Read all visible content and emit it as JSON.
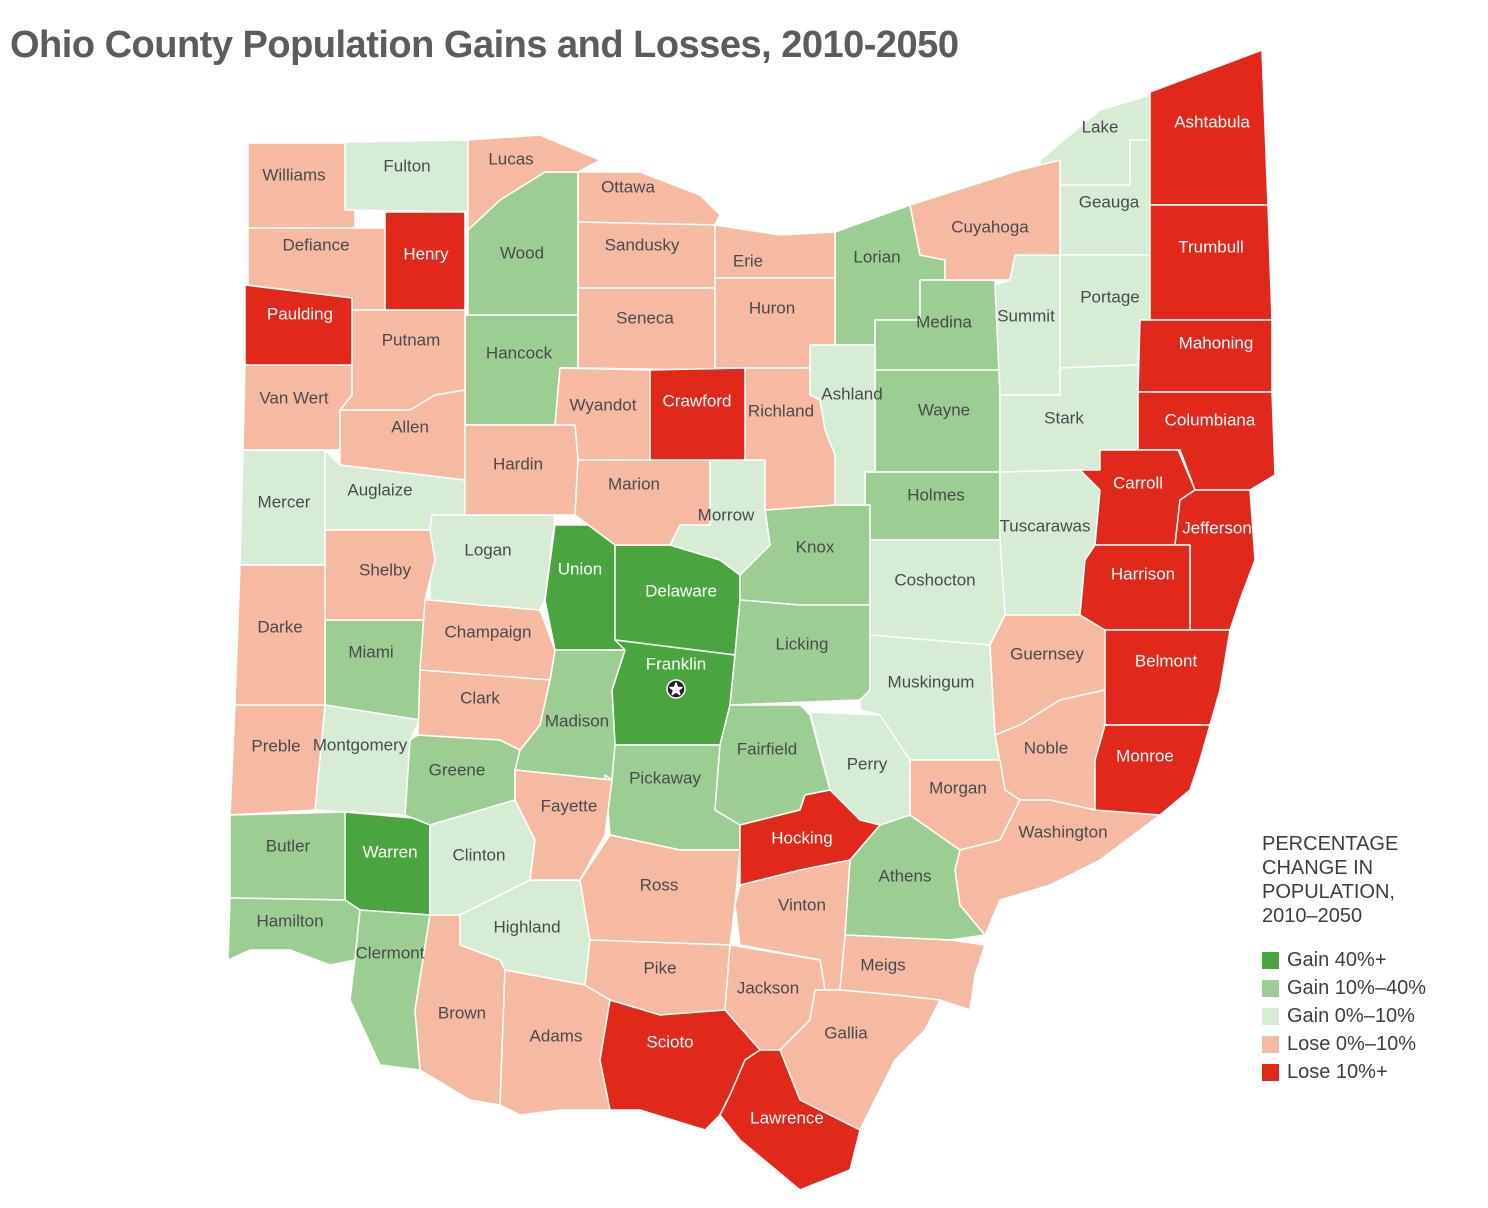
{
  "title": "Ohio County Population Gains and Losses, 2010-2050",
  "legend": {
    "title": "PERCENTAGE CHANGE IN POPULATION, 2010–2050",
    "items": [
      {
        "label": "Gain 40%+",
        "color": "#4aa541",
        "counties": [
          "Union",
          "Delaware",
          "Franklin",
          "Warren"
        ]
      },
      {
        "label": "Gain 10%–40%",
        "color": "#9ccd92",
        "counties": [
          "Wood",
          "Hancock",
          "Lorian",
          "Medina",
          "Wayne",
          "Holmes",
          "Knox",
          "Licking",
          "Miami",
          "Madison",
          "Greene",
          "Pickaway",
          "Fairfield",
          "Butler",
          "Hamilton",
          "Clermont",
          "Athens"
        ]
      },
      {
        "label": "Gain 0%–10%",
        "color": "#d7ecd4",
        "counties": [
          "Fulton",
          "Lake",
          "Geauga",
          "Summit",
          "Portage",
          "Ashland",
          "Stark",
          "Tuscarawas",
          "Morrow",
          "Coshocton",
          "Muskingum",
          "Mercer",
          "Auglaize",
          "Logan",
          "Montgomery",
          "Perry",
          "Clinton",
          "Highland"
        ]
      },
      {
        "label": "Lose 0%–10%",
        "color": "#f6b9a2",
        "counties": [
          "Williams",
          "Lucas",
          "Ottawa",
          "Defiance",
          "Sandusky",
          "Erie",
          "Cuyahoga",
          "Putnam",
          "Seneca",
          "Huron",
          "Van Wert",
          "Allen",
          "Wyandot",
          "Richland",
          "Hardin",
          "Marion",
          "Shelby",
          "Darke",
          "Champaign",
          "Clark",
          "Guernsey",
          "Preble",
          "Noble",
          "Fayette",
          "Morgan",
          "Washington",
          "Ross",
          "Vinton",
          "Brown",
          "Adams",
          "Pike",
          "Jackson",
          "Meigs",
          "Gallia"
        ]
      },
      {
        "label": "Lose 10%+",
        "color": "#e0281b",
        "counties": [
          "Ashtabula",
          "Trumbull",
          "Mahoning",
          "Columbiana",
          "Carroll",
          "Jefferson",
          "Harrison",
          "Belmont",
          "Monroe",
          "Henry",
          "Paulding",
          "Crawford",
          "Hocking",
          "Scioto",
          "Lawrence"
        ]
      }
    ]
  }
}
